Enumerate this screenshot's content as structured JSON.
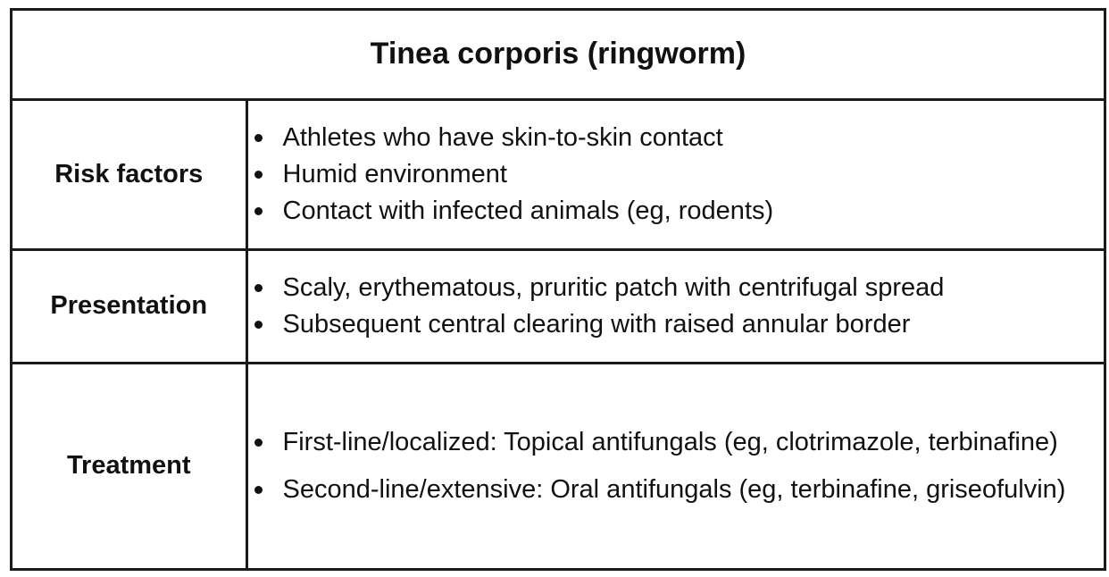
{
  "title": "Tinea corporis (ringworm)",
  "rows": [
    {
      "label": "Risk factors",
      "items": [
        "Athletes who have skin-to-skin contact",
        "Humid environment",
        "Contact with infected animals (eg, rodents)"
      ]
    },
    {
      "label": "Presentation",
      "items": [
        "Scaly, erythematous, pruritic patch with centrifugal spread",
        "Subsequent central clearing with raised annular border"
      ]
    },
    {
      "label": "Treatment",
      "items": [
        "First-line/localized: Topical antifungals (eg, clotrimazole, terbinafine)",
        "Second-line/extensive: Oral antifungals (eg, terbinafine, griseofulvin)"
      ]
    }
  ]
}
